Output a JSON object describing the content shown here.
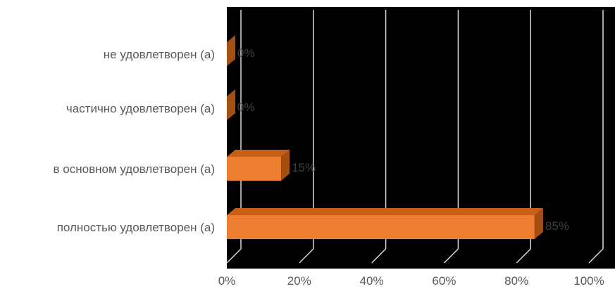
{
  "chart_data": {
    "type": "bar",
    "orientation": "horizontal",
    "style": "3d",
    "categories": [
      "не удовлетворен (а)",
      "частично удовлетворен (а)",
      "в основном удовлетворен (а)",
      "полностью удовлетворен (а)"
    ],
    "values": [
      0,
      0,
      15,
      85
    ],
    "data_labels": [
      "0%",
      "0%",
      "15%",
      "85%"
    ],
    "xlim": [
      0,
      100
    ],
    "x_ticks": [
      0,
      20,
      40,
      60,
      80,
      100
    ],
    "x_tick_labels": [
      "0%",
      "20%",
      "40%",
      "60%",
      "80%",
      "100%"
    ],
    "grid": true,
    "legend": "none",
    "title": "",
    "xlabel": "",
    "ylabel": "",
    "colors": {
      "plot_background": "#000000",
      "bar_front": "#ED7D31",
      "bar_top": "#C75F17",
      "bar_side": "#A34E13",
      "gridline": "#D9D9D9",
      "data_label": "#404040",
      "axis_text": "#595959"
    }
  }
}
